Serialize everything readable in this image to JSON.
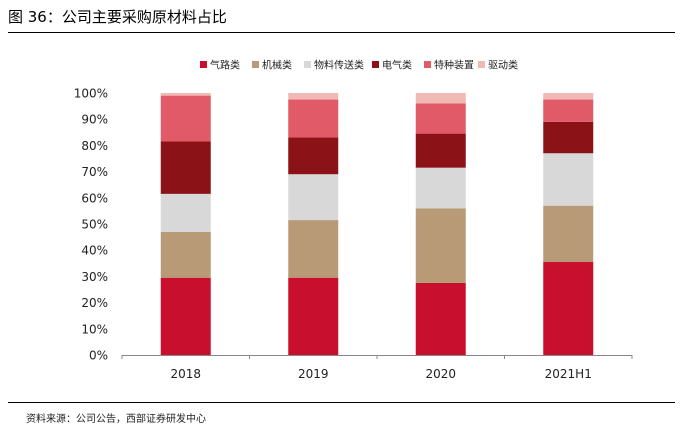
{
  "figure": {
    "title": "图 36：公司主要采购原材料占比",
    "source": "资料来源：公司公告，西部证券研发中心"
  },
  "chart_data": {
    "type": "bar",
    "stacked": true,
    "percent_stacked": true,
    "categories": [
      "2018",
      "2019",
      "2020",
      "2021H1"
    ],
    "series": [
      {
        "name": "气路类",
        "color": "#c8102e",
        "values": [
          29.5,
          29.5,
          27.5,
          35.5
        ]
      },
      {
        "name": "机械类",
        "color": "#b89a76",
        "values": [
          17.5,
          22.0,
          28.5,
          21.5
        ]
      },
      {
        "name": "物料传送类",
        "color": "#d8d8d8",
        "values": [
          14.5,
          17.5,
          15.5,
          20.0
        ]
      },
      {
        "name": "电气类",
        "color": "#8b1318",
        "values": [
          20.0,
          14.0,
          13.0,
          12.0
        ]
      },
      {
        "name": "特种装置",
        "color": "#e05a67",
        "values": [
          17.5,
          14.5,
          11.5,
          8.5
        ]
      },
      {
        "name": "驱动类",
        "color": "#f0b9b4",
        "values": [
          1.0,
          2.5,
          4.0,
          2.5
        ]
      }
    ],
    "ylim": [
      0,
      100
    ],
    "yticks": [
      "0%",
      "10%",
      "20%",
      "30%",
      "40%",
      "50%",
      "60%",
      "70%",
      "80%",
      "90%",
      "100%"
    ],
    "grid": false,
    "legend_position": "top"
  }
}
